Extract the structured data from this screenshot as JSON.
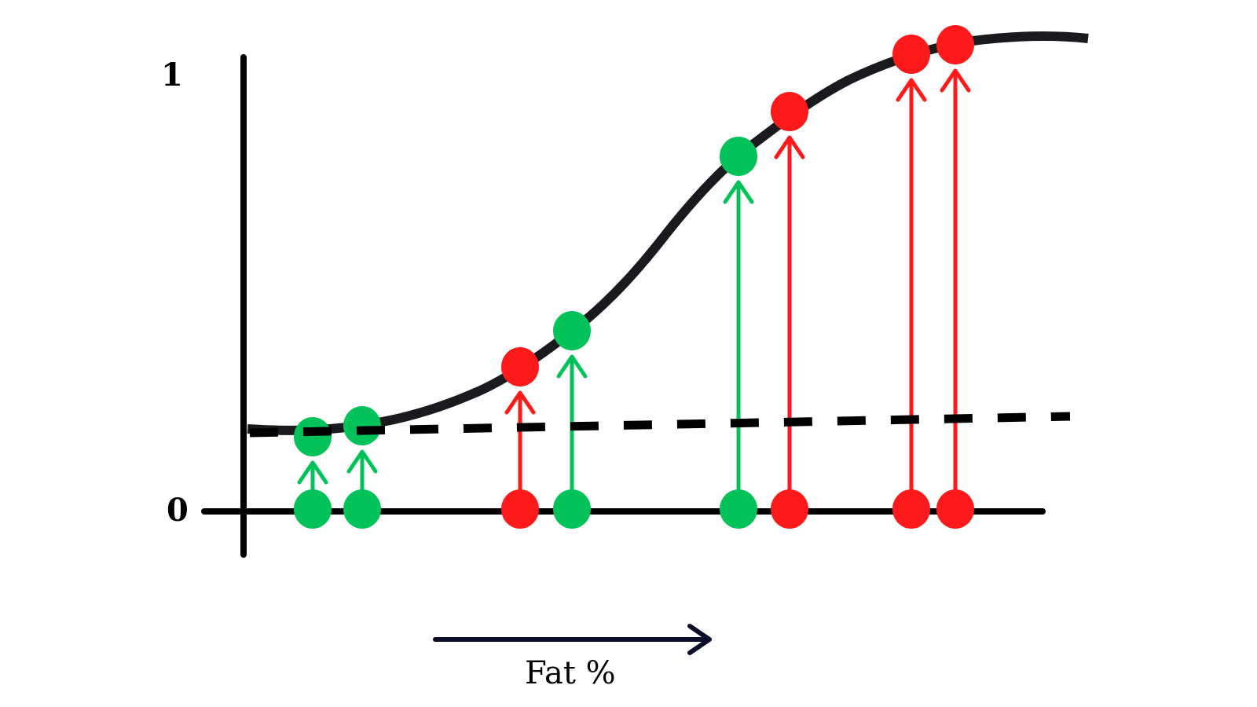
{
  "axis": {
    "y_top_label": "1",
    "y_bottom_label": "0",
    "x_label": "Fat %"
  },
  "colors": {
    "class_a": "#04c25a",
    "class_b": "#fe1a1a",
    "curve": "#1a1a1e",
    "axis": "#000000",
    "x_arrow": "#0b0c2a"
  },
  "points": [
    {
      "class": "class_a"
    },
    {
      "class": "class_a"
    },
    {
      "class": "class_b"
    },
    {
      "class": "class_a"
    },
    {
      "class": "class_a"
    },
    {
      "class": "class_b"
    },
    {
      "class": "class_b"
    },
    {
      "class": "class_b"
    }
  ]
}
